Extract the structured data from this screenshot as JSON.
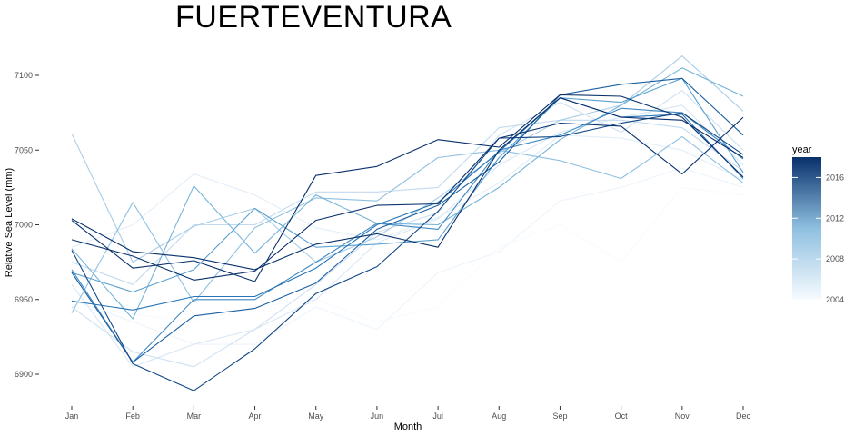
{
  "chart_data": {
    "type": "line",
    "title": "FUERTEVENTURA",
    "xlabel": "Month",
    "ylabel": "Relative Sea Level (mm)",
    "categories": [
      "Jan",
      "Feb",
      "Mar",
      "Apr",
      "May",
      "Jun",
      "Jul",
      "Aug",
      "Sep",
      "Oct",
      "Nov",
      "Dec"
    ],
    "yticks": [
      6900,
      6950,
      7000,
      7050,
      7100
    ],
    "ylim": [
      6884,
      7118
    ],
    "grid": false,
    "legend": {
      "title": "year",
      "position": "right",
      "min": 2004,
      "max": 2018,
      "ticks": [
        2004,
        2008,
        2012,
        2016
      ],
      "color_low": "#f7fbff",
      "color_high": "#08306b"
    },
    "series": [
      {
        "name": "2004",
        "values": [
          6945,
          6940,
          6935,
          6945,
          6950,
          6935,
          6945,
          6985,
          7000,
          6975,
          7025,
          7020
        ]
      },
      {
        "name": "2005",
        "values": [
          6950,
          6935,
          6920,
          6920,
          6945,
          6930,
          6968,
          6982,
          7016,
          7025,
          7038,
          7025
        ]
      },
      {
        "name": "2006",
        "values": [
          6985,
          7000,
          7034,
          7020,
          6998,
          6990,
          7005,
          7028,
          7060,
          7058,
          7050,
          7030
        ]
      },
      {
        "name": "2007",
        "values": [
          6960,
          6905,
          6920,
          6930,
          6950,
          6988,
          7004,
          7040,
          7062,
          7072,
          7080,
          7040
        ]
      },
      {
        "name": "2008",
        "values": [
          6945,
          6915,
          6905,
          6930,
          6960,
          6995,
          7008,
          7060,
          7082,
          7062,
          7090,
          7050
        ]
      },
      {
        "name": "2009",
        "values": [
          6975,
          6960,
          7000,
          7000,
          7022,
          7022,
          7025,
          7065,
          7070,
          7070,
          7065,
          7036
        ]
      },
      {
        "name": "2010",
        "values": [
          7061,
          6975,
          6999,
          7011,
          6975,
          6992,
          7018,
          7048,
          7070,
          7080,
          7113,
          7076
        ]
      },
      {
        "name": "2011",
        "values": [
          6941,
          7015,
          6948,
          6998,
          7018,
          7016,
          7045,
          7050,
          7043,
          7031,
          7059,
          7028
        ]
      },
      {
        "name": "2012",
        "values": [
          6984,
          6937,
          7026,
          6981,
          7020,
          7001,
          7000,
          7025,
          7057,
          7080,
          7105,
          7086
        ]
      },
      {
        "name": "2013",
        "values": [
          6968,
          6955,
          6970,
          7011,
          6985,
          6987,
          6990,
          7045,
          7085,
          7082,
          7098,
          7035
        ]
      },
      {
        "name": "2014",
        "values": [
          6970,
          6908,
          6950,
          6950,
          6975,
          7001,
          6997,
          7050,
          7060,
          7078,
          7075,
          7044
        ]
      },
      {
        "name": "2015",
        "values": [
          6949,
          6943,
          6952,
          6952,
          6971,
          7000,
          7015,
          7049,
          7085,
          7072,
          7074,
          7031
        ]
      },
      {
        "name": "2016",
        "values": [
          6968,
          6908,
          6939,
          6944,
          6961,
          6997,
          7013,
          7042,
          7087,
          7094,
          7098,
          7060
        ]
      },
      {
        "name": "2017",
        "values": [
          6983,
          6907,
          6889,
          6917,
          6954,
          6972,
          7009,
          7058,
          7059,
          7068,
          7075,
          7047
        ]
      },
      {
        "name": "2018",
        "values": [
          7003,
          6971,
          6976,
          6962,
          7033,
          7039,
          7057,
          7052,
          7087,
          7086,
          7072,
          7032
        ]
      },
      {
        "name": "2019",
        "values": [
          6990,
          6979,
          6963,
          6969,
          7003,
          7013,
          7014,
          7058,
          7068,
          7066,
          7034,
          7072
        ]
      },
      {
        "name": "2020",
        "values": [
          7004,
          6982,
          6978,
          6970,
          6987,
          6994,
          6985,
          7050,
          7085,
          7072,
          7070,
          7045
        ]
      }
    ]
  }
}
